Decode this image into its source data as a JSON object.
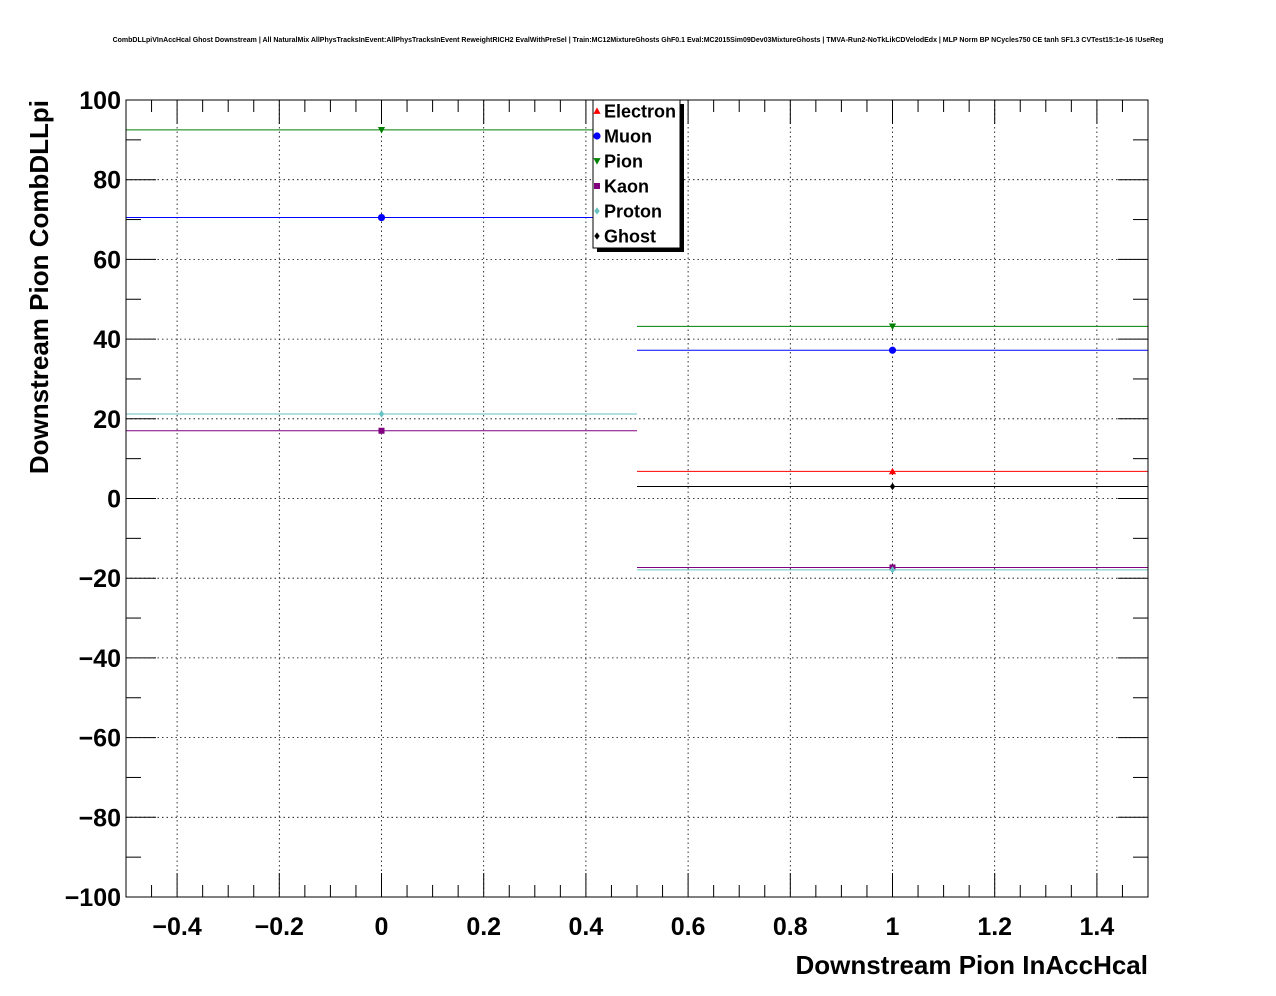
{
  "chart_data": {
    "type": "scatter",
    "title": "CombDLLpiVInAccHcal Ghost Downstream | All NaturalMix AllPhysTracksInEvent:AllPhysTracksInEvent ReweightRICH2 EvalWithPreSel | Train:MC12MixtureGhosts GhF0.1 Eval:MC2015Sim09Dev03MixtureGhosts | TMVA-Run2-NoTkLikCDVelodEdx | MLP Norm BP NCycles750 CE tanh SF1.3 CVTest15:1e-16 !UseReg",
    "xlabel": "Downstream Pion InAccHcal",
    "ylabel": "Downstream Pion CombDLLpi",
    "xlim": [
      -0.5,
      1.5
    ],
    "ylim": [
      -100,
      100
    ],
    "xticks": [
      -0.4,
      -0.2,
      0,
      0.2,
      0.4,
      0.6,
      0.8,
      1,
      1.2,
      1.4
    ],
    "xtick_labels": [
      "−0.4",
      "−0.2",
      "0",
      "0.2",
      "0.4",
      "0.6",
      "0.8",
      "1",
      "1.2",
      "1.4"
    ],
    "yticks": [
      100,
      80,
      60,
      40,
      20,
      0,
      -20,
      -40,
      -60,
      -80,
      -100
    ],
    "ytick_labels": [
      "100",
      "80",
      "60",
      "40",
      "20",
      "0",
      "−20",
      "−40",
      "−60",
      "−80",
      "−100"
    ],
    "grid": true,
    "legend_position": "top-center",
    "bins": [
      {
        "x": 0,
        "xerr": 0.5
      },
      {
        "x": 1,
        "xerr": 0.5
      }
    ],
    "series": [
      {
        "name": "Electron",
        "color": "#ff0000",
        "marker": "triangle-up",
        "values": [
          null,
          6.8
        ]
      },
      {
        "name": "Muon",
        "color": "#0000ff",
        "marker": "circle",
        "values": [
          70.5,
          37.2
        ]
      },
      {
        "name": "Pion",
        "color": "#008000",
        "marker": "triangle-down",
        "values": [
          92.5,
          43.2
        ]
      },
      {
        "name": "Kaon",
        "color": "#800080",
        "marker": "square",
        "values": [
          17.0,
          -17.3
        ]
      },
      {
        "name": "Proton",
        "color": "#66c2c2",
        "marker": "diamond",
        "values": [
          21.2,
          -17.9
        ]
      },
      {
        "name": "Ghost",
        "color": "#000000",
        "marker": "diamond",
        "values": [
          null,
          3.0
        ]
      }
    ]
  }
}
